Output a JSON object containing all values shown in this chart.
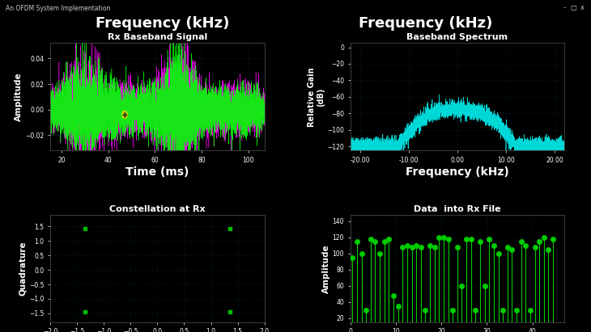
{
  "bg_color": "#000000",
  "fg_color": "#ffffff",
  "grid_color": "#003355",
  "grid_style": ":",
  "title_top": "Frequency (kHz)",
  "window_title": "An OFDM System Implementation",
  "plot1": {
    "title": "Rx Baseband Signal",
    "xlabel": "Time (ms)",
    "ylabel": "Amplitude",
    "xlim": [
      15,
      107
    ],
    "ylim": [
      -0.032,
      0.052
    ],
    "yticks": [
      -0.02,
      0.0,
      0.02,
      0.04
    ],
    "xticks": [
      20,
      40,
      60,
      80,
      100
    ],
    "color_green": "#00ff00",
    "color_magenta": "#ff00ff"
  },
  "plot2": {
    "title": "Baseband Spectrum",
    "xlabel": "Frequency (kHz)",
    "ylabel": "Relative Gain\n(dB)",
    "xlim": [
      -22,
      22
    ],
    "ylim": [
      -125,
      5
    ],
    "yticks": [
      0,
      -20,
      -40,
      -60,
      -80,
      -100,
      -120
    ],
    "xticks": [
      -20.0,
      -10.0,
      0.0,
      10.0,
      20.0
    ],
    "color_cyan": "#00e5e5"
  },
  "plot3": {
    "title": "Constellation at Rx",
    "xlabel": "",
    "ylabel": "Quadrature",
    "xlim": [
      -2.0,
      2.0
    ],
    "ylim": [
      -1.8,
      1.9
    ],
    "yticks": [
      -1.5,
      -1.0,
      -0.5,
      0.0,
      0.5,
      1.0,
      1.5
    ],
    "color_green": "#00bb00",
    "points_x": [
      -1.35,
      -1.35,
      1.35,
      1.35
    ],
    "points_y": [
      1.43,
      -1.45,
      1.43,
      -1.45
    ]
  },
  "plot4": {
    "title": "Data  into Rx File",
    "xlabel": "",
    "ylabel": "Amplitude",
    "xlim": [
      0,
      47
    ],
    "ylim": [
      15,
      148
    ],
    "yticks": [
      20,
      40,
      60,
      80,
      100,
      120,
      140
    ],
    "color_green": "#00cc00",
    "stem_values": [
      95,
      115,
      100,
      30,
      118,
      115,
      100,
      115,
      118,
      48,
      35,
      108,
      110,
      108,
      110,
      108,
      30,
      110,
      108,
      120,
      120,
      118,
      30,
      108,
      60,
      118,
      118,
      30,
      115,
      60,
      118,
      110,
      100,
      30,
      108,
      105,
      30,
      115,
      110,
      30,
      108,
      115,
      120,
      105,
      118
    ]
  }
}
